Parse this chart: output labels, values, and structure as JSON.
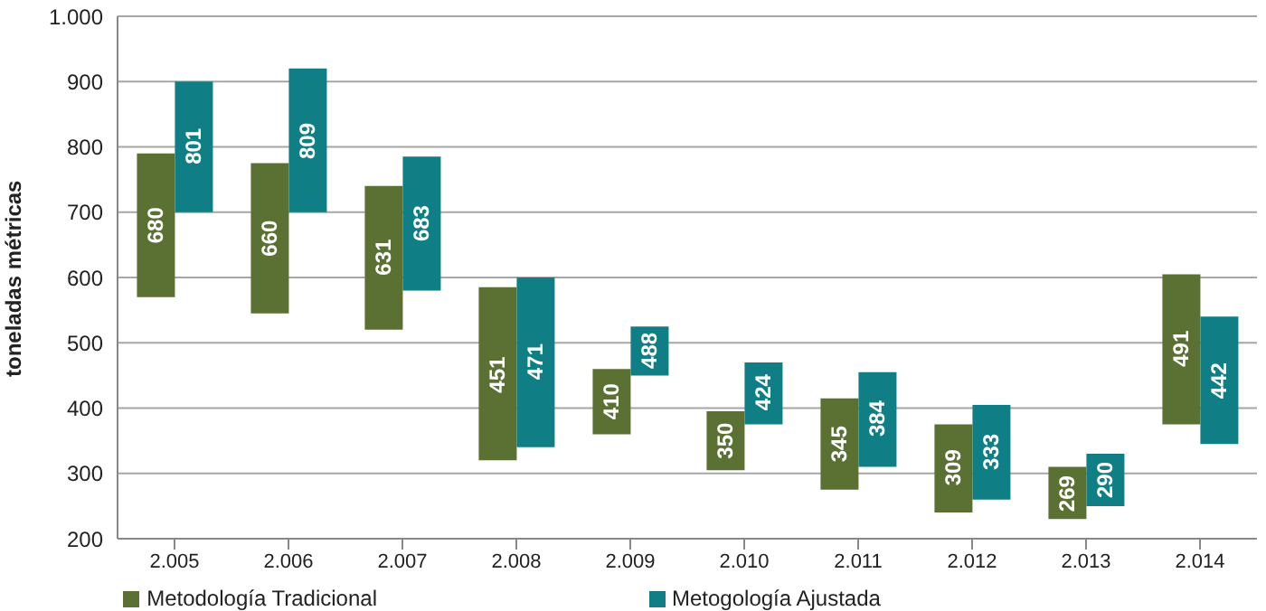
{
  "chart_data": {
    "type": "bar",
    "ylabel": "toneladas métricas",
    "categories": [
      "2.005",
      "2.006",
      "2.007",
      "2.008",
      "2.009",
      "2.010",
      "2.011",
      "2.012",
      "2.013",
      "2.014"
    ],
    "series": [
      {
        "name": "Metodología Tradicional",
        "color": "#5b7133",
        "base": [
          570,
          545,
          520,
          320,
          360,
          305,
          275,
          240,
          230,
          375
        ],
        "values": [
          220,
          230,
          220,
          265,
          100,
          90,
          140,
          135,
          80,
          230
        ]
      },
      {
        "name": "Metogología Ajustada",
        "color": "#0f7f85",
        "base": [
          700,
          700,
          580,
          340,
          450,
          375,
          310,
          260,
          250,
          345
        ],
        "values": [
          200,
          220,
          205,
          260,
          75,
          95,
          145,
          145,
          80,
          195
        ]
      }
    ],
    "annotations": [
      {
        "text": "680",
        "x": "2.005",
        "y": 680
      },
      {
        "text": "801",
        "x": "2.005",
        "y": 801
      },
      {
        "text": "660",
        "x": "2.006",
        "y": 660
      },
      {
        "text": "809",
        "x": "2.006",
        "y": 809
      },
      {
        "text": "631",
        "x": "2.007",
        "y": 631
      },
      {
        "text": "683",
        "x": "2.007",
        "y": 683
      },
      {
        "text": "451",
        "x": "2.008",
        "y": 451
      },
      {
        "text": "471",
        "x": "2.008",
        "y": 471
      },
      {
        "text": "410",
        "x": "2.009",
        "y": 410
      },
      {
        "text": "488",
        "x": "2.009",
        "y": 488
      },
      {
        "text": "350",
        "x": "2.010",
        "y": 350
      },
      {
        "text": "424",
        "x": "2.010",
        "y": 424
      },
      {
        "text": "345",
        "x": "2.011",
        "y": 345
      },
      {
        "text": "384",
        "x": "2.011",
        "y": 384
      },
      {
        "text": "309",
        "x": "2.012",
        "y": 309
      },
      {
        "text": "333",
        "x": "2.012",
        "y": 333
      },
      {
        "text": "269",
        "x": "2.013",
        "y": 269
      },
      {
        "text": "290",
        "x": "2.013",
        "y": 290
      },
      {
        "text": "491",
        "x": "2.014",
        "y": 491
      },
      {
        "text": "442",
        "x": "2.014",
        "y": 442
      }
    ],
    "ylim": [
      200,
      1000
    ],
    "yticks": [
      200,
      300,
      400,
      500,
      600,
      700,
      800,
      900,
      {
        "value": 1000,
        "label": "1.000"
      }
    ],
    "grid": "y",
    "legend": "bottom"
  }
}
